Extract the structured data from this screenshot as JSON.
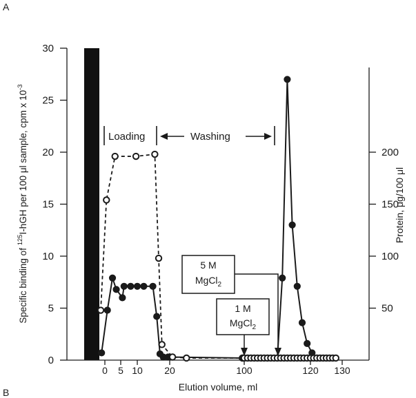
{
  "panel_label": "A",
  "next_panel_label": "B",
  "chart_data": {
    "type": "line",
    "xlabel": "Elution volume, ml",
    "ylabel_left": "Specific binding of ^125I-hGH per 100 μl sample, cpm x 10^-3",
    "ylabel_right": "Protein, μg/100 μl",
    "ylabel_left_parts": {
      "pre": "Specific binding of ",
      "sup1": "125",
      "mid": "I-hGH per 100 μl sample, cpm x 10",
      "sup2": "-3"
    },
    "x_ticks": [
      0,
      5,
      10,
      20,
      100,
      120,
      130
    ],
    "x_tick_labels": [
      "0",
      "5",
      "10",
      "20",
      "100",
      "120",
      "130"
    ],
    "y_left_ticks": [
      0,
      5,
      10,
      15,
      20,
      25,
      30
    ],
    "y_left_range": [
      0,
      30
    ],
    "y_right_ticks": [
      50,
      100,
      150,
      200
    ],
    "y_right_range": [
      0,
      300
    ],
    "x_axis_note": "broken x-axis scale",
    "series": [
      {
        "marker": "filled-circle",
        "line": "solid",
        "axis": "left",
        "points": [
          [
            -0.8,
            0.7
          ],
          [
            0.8,
            4.8
          ],
          [
            2.4,
            7.9
          ],
          [
            3.6,
            6.8
          ],
          [
            5.5,
            6.0
          ],
          [
            6.0,
            7.1
          ],
          [
            8.0,
            7.1
          ],
          [
            10.0,
            7.1
          ],
          [
            12.0,
            7.1
          ],
          [
            14.8,
            7.1
          ],
          [
            16.0,
            4.2
          ],
          [
            17.0,
            0.6
          ],
          [
            18.0,
            0.3
          ],
          [
            19.5,
            0.3
          ],
          [
            99.0,
            0.2
          ],
          [
            107.0,
            0.2
          ],
          [
            110.0,
            0.2
          ],
          [
            111.5,
            7.9
          ],
          [
            113.0,
            27.0
          ],
          [
            114.5,
            13.0
          ],
          [
            116.0,
            7.1
          ],
          [
            117.5,
            3.6
          ],
          [
            119.0,
            1.6
          ],
          [
            120.5,
            0.7
          ],
          [
            122.0,
            0.2
          ]
        ]
      },
      {
        "marker": "open-circle",
        "line": "dashed",
        "axis": "right",
        "points": [
          [
            -1.0,
            4.8
          ],
          [
            0.5,
            15.4
          ],
          [
            3.2,
            19.6
          ],
          [
            9.6,
            19.6
          ],
          [
            15.4,
            19.8
          ],
          [
            16.6,
            9.8
          ],
          [
            17.6,
            1.5
          ],
          [
            23.0,
            0.3
          ],
          [
            38.0,
            0.2
          ],
          [
            98.0,
            0.2
          ],
          [
            99.0,
            0.2
          ],
          [
            100.0,
            0.2
          ],
          [
            101.0,
            0.2
          ],
          [
            102.0,
            0.2
          ],
          [
            103.0,
            0.2
          ],
          [
            104.0,
            0.2
          ],
          [
            105.0,
            0.2
          ],
          [
            106.0,
            0.2
          ],
          [
            107.0,
            0.2
          ],
          [
            108.0,
            0.2
          ],
          [
            109.0,
            0.2
          ],
          [
            110.0,
            0.2
          ],
          [
            111.0,
            0.2
          ],
          [
            112.0,
            0.2
          ],
          [
            113.0,
            0.2
          ],
          [
            114.0,
            0.2
          ],
          [
            115.0,
            0.2
          ],
          [
            116.0,
            0.2
          ],
          [
            117.0,
            0.2
          ],
          [
            118.0,
            0.2
          ],
          [
            119.0,
            0.2
          ],
          [
            120.0,
            0.2
          ],
          [
            121.0,
            0.2
          ],
          [
            122.0,
            0.2
          ],
          [
            123.0,
            0.2
          ],
          [
            124.0,
            0.2
          ],
          [
            125.0,
            0.2
          ],
          [
            126.0,
            0.2
          ],
          [
            127.0,
            0.2
          ],
          [
            128.0,
            0.2
          ]
        ]
      }
    ],
    "annotations": {
      "loading": "Loading",
      "washing": "Washing",
      "mgcl2_5m_line1": "5 M",
      "mgcl2_5m_line2": "MgCl",
      "mgcl2_5m_sub": "2",
      "mgcl2_1m_line1": "1 M",
      "mgcl2_1m_line2": "MgCl",
      "mgcl2_1m_sub": "2"
    },
    "grid": false,
    "colors": {
      "ink": "#1a1a1a",
      "background": "#ffffff"
    }
  }
}
